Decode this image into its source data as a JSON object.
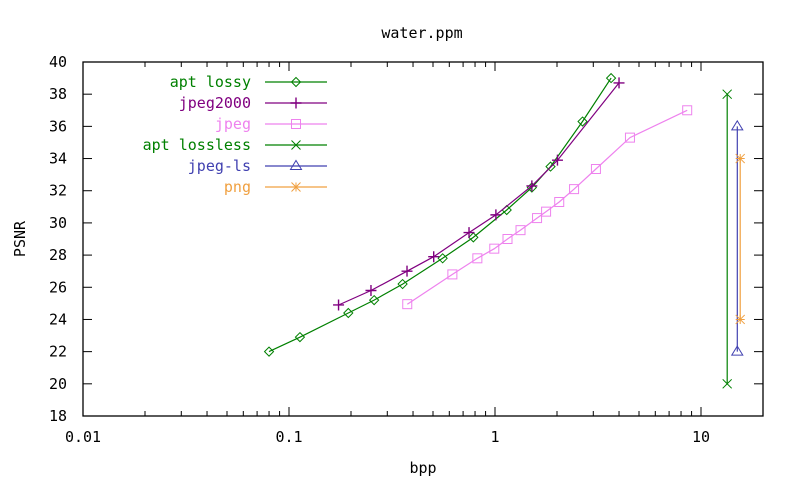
{
  "chart_data": {
    "type": "line",
    "title": "water.ppm",
    "xlabel": "bpp",
    "ylabel": "PSNR",
    "xscale": "log",
    "xlim": [
      0.01,
      20
    ],
    "ylim": [
      18,
      40
    ],
    "xticks": [
      0.01,
      0.1,
      1,
      10
    ],
    "xtick_labels": [
      "0.01",
      "0.1",
      "1",
      "10"
    ],
    "yticks": [
      18,
      20,
      22,
      24,
      26,
      28,
      30,
      32,
      34,
      36,
      38,
      40
    ],
    "ytick_labels": [
      "18",
      "20",
      "22",
      "24",
      "26",
      "28",
      "30",
      "32",
      "34",
      "36",
      "38",
      "40"
    ],
    "grid": false,
    "legend_position": "upper left",
    "series": [
      {
        "name": "apt lossy",
        "color": "#008000",
        "marker": "diamond",
        "x": [
          0.08,
          0.113,
          0.194,
          0.259,
          0.356,
          0.557,
          0.785,
          1.14,
          1.51,
          1.86,
          2.66,
          3.66
        ],
        "y": [
          22.0,
          22.9,
          24.4,
          25.2,
          26.2,
          27.8,
          29.1,
          30.8,
          32.2,
          33.5,
          36.3,
          39.0
        ]
      },
      {
        "name": "jpeg2000",
        "color": "#800080",
        "marker": "plus",
        "x": [
          0.174,
          0.25,
          0.374,
          0.504,
          0.748,
          1.01,
          1.51,
          2.01,
          4.0
        ],
        "y": [
          24.9,
          25.8,
          27.0,
          27.9,
          29.4,
          30.5,
          32.3,
          33.9,
          38.7
        ]
      },
      {
        "name": "jpeg",
        "color": "#ee82ee",
        "marker": "square",
        "x": [
          0.375,
          0.621,
          0.821,
          0.992,
          1.15,
          1.33,
          1.6,
          1.77,
          2.05,
          2.42,
          3.09,
          4.52,
          8.57
        ],
        "y": [
          24.95,
          26.8,
          27.8,
          28.4,
          29.0,
          29.55,
          30.3,
          30.7,
          31.3,
          32.1,
          33.35,
          35.3,
          37.0
        ]
      },
      {
        "name": "apt lossless",
        "color": "#008000",
        "marker": "cross",
        "x": [
          13.4,
          13.4
        ],
        "y": [
          38,
          20
        ]
      },
      {
        "name": "jpeg-ls",
        "color": "#4040b0",
        "marker": "triangle",
        "x": [
          15.0,
          15.0
        ],
        "y": [
          36,
          22
        ]
      },
      {
        "name": "png",
        "color": "#f0a040",
        "marker": "star",
        "x": [
          15.5,
          15.5
        ],
        "y": [
          34,
          24
        ]
      }
    ]
  }
}
